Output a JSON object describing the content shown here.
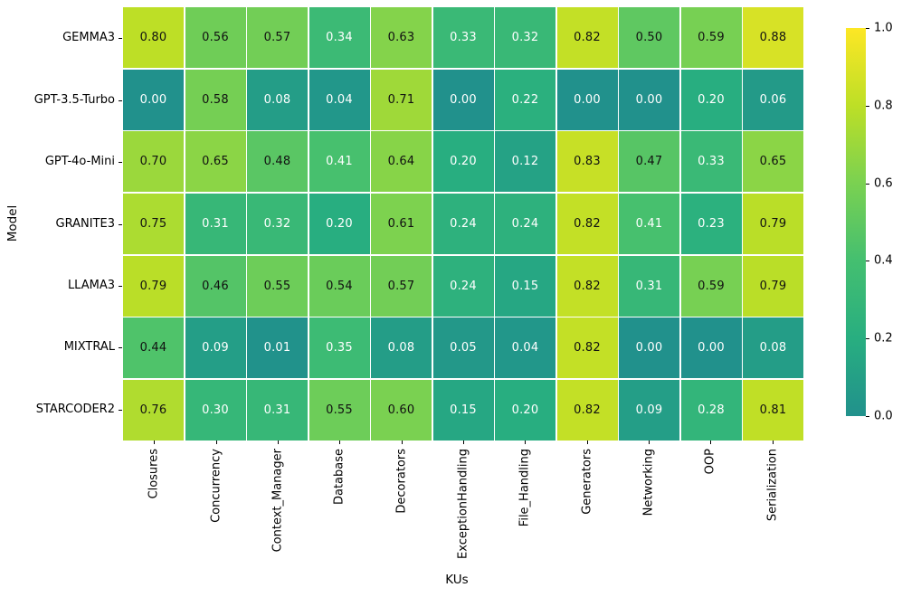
{
  "figure": {
    "background_color": "#ffffff",
    "text_color": "#000000"
  },
  "chart_data": {
    "type": "heatmap",
    "xlabel": "KUs",
    "ylabel": "Model",
    "rows": [
      "GEMMA3",
      "GPT-3.5-Turbo",
      "GPT-4o-Mini",
      "GRANITE3",
      "LLAMA3",
      "MIXTRAL",
      "STARCODER2"
    ],
    "columns": [
      "Closures",
      "Concurrency",
      "Context_Manager",
      "Database",
      "Decorators",
      "ExceptionHandling",
      "File_Handling",
      "Generators",
      "Networking",
      "OOP",
      "Serialization"
    ],
    "values": [
      [
        0.8,
        0.56,
        0.57,
        0.34,
        0.63,
        0.33,
        0.32,
        0.82,
        0.5,
        0.59,
        0.88
      ],
      [
        0.0,
        0.58,
        0.08,
        0.04,
        0.71,
        0.0,
        0.22,
        0.0,
        0.0,
        0.2,
        0.06
      ],
      [
        0.7,
        0.65,
        0.48,
        0.41,
        0.64,
        0.2,
        0.12,
        0.83,
        0.47,
        0.33,
        0.65
      ],
      [
        0.75,
        0.31,
        0.32,
        0.2,
        0.61,
        0.24,
        0.24,
        0.82,
        0.41,
        0.23,
        0.79
      ],
      [
        0.79,
        0.46,
        0.55,
        0.54,
        0.57,
        0.24,
        0.15,
        0.82,
        0.31,
        0.59,
        0.79
      ],
      [
        0.44,
        0.09,
        0.01,
        0.35,
        0.08,
        0.05,
        0.04,
        0.82,
        0.0,
        0.0,
        0.08
      ],
      [
        0.76,
        0.3,
        0.31,
        0.55,
        0.6,
        0.15,
        0.2,
        0.82,
        0.09,
        0.28,
        0.81
      ]
    ],
    "value_format_decimals": 2,
    "vmin": 0.0,
    "vmax": 1.0,
    "grid_line_color": "#ffffff",
    "colormap_stops": [
      {
        "pos": 0.0,
        "color": "#21918c"
      },
      {
        "pos": 0.2,
        "color": "#28ae80"
      },
      {
        "pos": 0.4,
        "color": "#44bf70"
      },
      {
        "pos": 0.6,
        "color": "#7ad151"
      },
      {
        "pos": 0.8,
        "color": "#bddf26"
      },
      {
        "pos": 1.0,
        "color": "#fde725"
      }
    ],
    "annotation_text_dark": "#111111",
    "annotation_text_light": "#ffffff",
    "luminance_threshold": 0.408,
    "colorbar": {
      "ticks": [
        {
          "label": "1.0",
          "value": 1.0
        },
        {
          "label": "0.8",
          "value": 0.8
        },
        {
          "label": "0.6",
          "value": 0.6
        },
        {
          "label": "0.4",
          "value": 0.4
        },
        {
          "label": "0.2",
          "value": 0.2
        },
        {
          "label": "0.0",
          "value": 0.0
        }
      ]
    }
  }
}
